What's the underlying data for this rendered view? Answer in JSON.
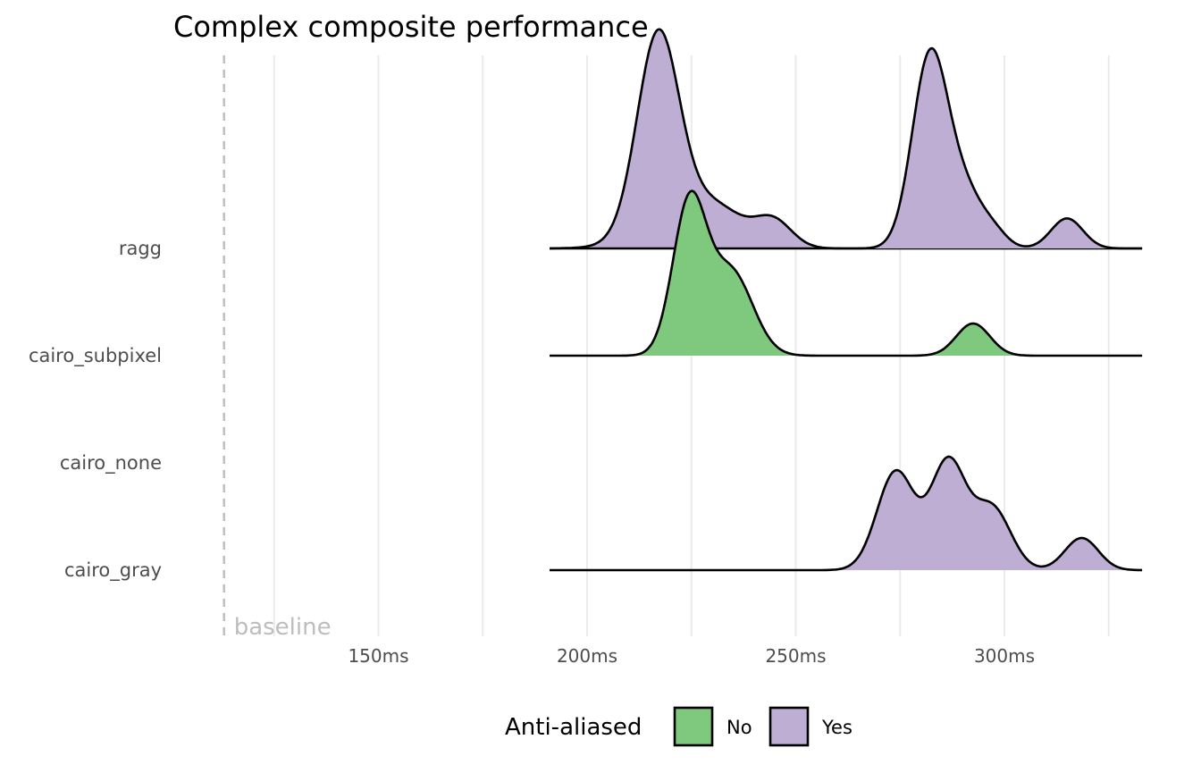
{
  "chart_data": {
    "type": "ridgeline",
    "title": "Complex composite performance",
    "xlabel": "",
    "ylabel": "",
    "x_unit": "ms",
    "xlim": [
      111,
      336
    ],
    "x_ticks": [
      150,
      200,
      250,
      300
    ],
    "x_tick_labels": [
      "150ms",
      "200ms",
      "250ms",
      "300ms"
    ],
    "x_minor_gridlines": [
      125,
      175,
      225,
      275,
      325
    ],
    "grid": true,
    "categories": [
      "ragg",
      "cairo_subpixel",
      "cairo_none",
      "cairo_gray"
    ],
    "density_range": [
      191,
      333
    ],
    "baseline": {
      "x": 113,
      "label": "baseline",
      "style": "dashed"
    },
    "legend": {
      "title": "Anti-aliased",
      "position": "bottom",
      "entries": [
        {
          "label": "No",
          "color": "#7fc97f"
        },
        {
          "label": "Yes",
          "color": "#beaed4"
        }
      ]
    },
    "series": [
      {
        "category": "ragg",
        "anti_aliased": "Yes",
        "color": "#beaed4",
        "peaks": [
          {
            "x": 217,
            "height": 1.79,
            "sd": 5.0
          },
          {
            "x": 222,
            "height": 0.28,
            "sd": 9.0
          },
          {
            "x": 232,
            "height": 0.25,
            "sd": 6.0
          },
          {
            "x": 244.5,
            "height": 0.26,
            "sd": 4.5
          }
        ]
      },
      {
        "category": "ragg",
        "anti_aliased": "Yes",
        "color": "#beaed4",
        "peaks": [
          {
            "x": 282,
            "height": 1.7,
            "sd": 4.2
          },
          {
            "x": 290,
            "height": 0.55,
            "sd": 5.0
          },
          {
            "x": 298,
            "height": 0.08,
            "sd": 3.0
          },
          {
            "x": 315,
            "height": 0.28,
            "sd": 3.8
          }
        ]
      },
      {
        "category": "cairo_subpixel",
        "anti_aliased": "No",
        "color": "#7fc97f",
        "peaks": [
          {
            "x": 224.5,
            "height": 1.4,
            "sd": 4.0
          },
          {
            "x": 234.5,
            "height": 0.78,
            "sd": 5.2
          },
          {
            "x": 292.5,
            "height": 0.3,
            "sd": 4.0
          }
        ]
      },
      {
        "category": "cairo_gray",
        "anti_aliased": "Yes",
        "color": "#beaed4",
        "peaks": [
          {
            "x": 274,
            "height": 0.92,
            "sd": 4.5
          },
          {
            "x": 286.5,
            "height": 1.0,
            "sd": 4.2
          },
          {
            "x": 297,
            "height": 0.58,
            "sd": 4.5
          },
          {
            "x": 318.5,
            "height": 0.3,
            "sd": 4.0
          }
        ]
      }
    ]
  }
}
